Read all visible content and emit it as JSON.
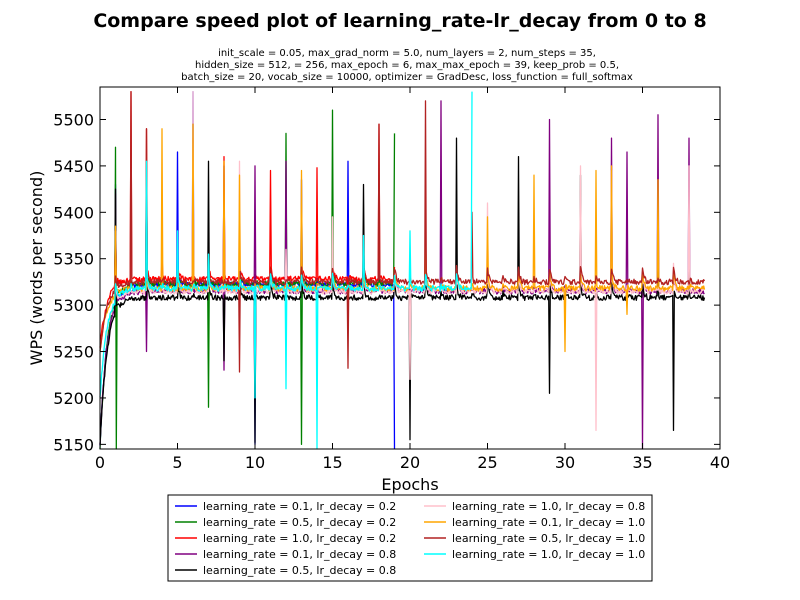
{
  "chart_data": {
    "type": "line",
    "title": "Compare speed plot of learning_rate-lr_decay from 0 to 8",
    "subtitle_lines": [
      "init_scale = 0.05, max_grad_norm = 5.0, num_layers = 2, num_steps = 35,",
      "hidden_size = 512,    = 256, max_epoch = 6, max_max_epoch = 39, keep_prob = 0.5,",
      "batch_size = 20, vocab_size = 10000, optimizer = GradDesc, loss_function = full_softmax"
    ],
    "xlabel": "Epochs",
    "ylabel": "WPS (words per second)",
    "xlim": [
      0,
      40
    ],
    "ylim": [
      5145,
      5535
    ],
    "x_ticks": [
      0,
      5,
      10,
      15,
      20,
      25,
      30,
      35,
      40
    ],
    "y_ticks": [
      5150,
      5200,
      5250,
      5300,
      5350,
      5400,
      5450,
      5500
    ],
    "grid": false,
    "legend_position": "below plot",
    "legend_columns": 2,
    "series": [
      {
        "name": "learning_rate = 0.1, lr_decay = 0.2",
        "color": "#0000ff",
        "epochs": 19,
        "start": 5150,
        "baseline": 5322,
        "spikes": [
          [
            1,
            5430
          ],
          [
            3,
            5450
          ],
          [
            5,
            5465
          ],
          [
            6,
            5530
          ],
          [
            8,
            5450
          ],
          [
            10,
            5150
          ],
          [
            13,
            5435
          ],
          [
            16,
            5455
          ],
          [
            18,
            5375
          ],
          [
            19,
            5145
          ]
        ]
      },
      {
        "name": "learning_rate = 0.5, lr_decay = 0.2",
        "color": "#008000",
        "epochs": 19,
        "start": 5145,
        "baseline": 5323,
        "spikes": [
          [
            1,
            5470
          ],
          [
            1.05,
            5145
          ],
          [
            3,
            5440
          ],
          [
            5,
            5330
          ],
          [
            7,
            5190
          ],
          [
            9,
            5350
          ],
          [
            12,
            5485
          ],
          [
            13,
            5150
          ],
          [
            15,
            5510
          ],
          [
            19,
            5485
          ]
        ]
      },
      {
        "name": "learning_rate = 1.0, lr_decay = 0.2",
        "color": "#ff0000",
        "epochs": 19,
        "start": 5255,
        "baseline": 5328,
        "spikes": [
          [
            1,
            5385
          ],
          [
            2,
            5530
          ],
          [
            3,
            5490
          ],
          [
            4,
            5355
          ],
          [
            6,
            5340
          ],
          [
            8,
            5460
          ],
          [
            11,
            5445
          ],
          [
            14,
            5448
          ],
          [
            16,
            5300
          ],
          [
            18,
            5495
          ]
        ]
      },
      {
        "name": "learning_rate = 0.1, lr_decay = 0.8",
        "color": "#800080",
        "epochs": 39,
        "start": 5150,
        "baseline": 5315,
        "spikes": [
          [
            1,
            5420
          ],
          [
            3,
            5250
          ],
          [
            6,
            5480
          ],
          [
            8,
            5230
          ],
          [
            10,
            5450
          ],
          [
            12,
            5455
          ],
          [
            22,
            5520
          ],
          [
            29,
            5500
          ],
          [
            33,
            5480
          ],
          [
            34,
            5465
          ],
          [
            35,
            5145
          ],
          [
            36,
            5505
          ],
          [
            38,
            5480
          ]
        ]
      },
      {
        "name": "learning_rate = 0.5, lr_decay = 0.8",
        "color": "#000000",
        "epochs": 39,
        "start": 5150,
        "baseline": 5308,
        "spikes": [
          [
            1,
            5425
          ],
          [
            7,
            5455
          ],
          [
            8,
            5240
          ],
          [
            10,
            5152
          ],
          [
            15,
            5335
          ],
          [
            17,
            5430
          ],
          [
            20,
            5155
          ],
          [
            23,
            5480
          ],
          [
            27,
            5460
          ],
          [
            29,
            5205
          ],
          [
            31,
            5440
          ],
          [
            36,
            5340
          ],
          [
            37,
            5165
          ],
          [
            38,
            5345
          ]
        ]
      },
      {
        "name": "learning_rate = 1.0, lr_decay = 0.8",
        "color": "#ffc0cb",
        "epochs": 39,
        "start": 5200,
        "baseline": 5315,
        "spikes": [
          [
            1,
            5380
          ],
          [
            6,
            5530
          ],
          [
            9,
            5455
          ],
          [
            12,
            5360
          ],
          [
            15,
            5395
          ],
          [
            20,
            5220
          ],
          [
            25,
            5410
          ],
          [
            31,
            5450
          ],
          [
            32,
            5165
          ],
          [
            33,
            5445
          ],
          [
            37,
            5345
          ],
          [
            38,
            5450
          ]
        ]
      },
      {
        "name": "learning_rate = 0.1, lr_decay = 1.0",
        "color": "#ffa500",
        "epochs": 39,
        "start": 5250,
        "baseline": 5318,
        "spikes": [
          [
            1,
            5385
          ],
          [
            4,
            5490
          ],
          [
            6,
            5495
          ],
          [
            8,
            5455
          ],
          [
            9,
            5440
          ],
          [
            13,
            5445
          ],
          [
            21,
            5385
          ],
          [
            25,
            5395
          ],
          [
            28,
            5440
          ],
          [
            30,
            5250
          ],
          [
            32,
            5445
          ],
          [
            33,
            5450
          ],
          [
            34,
            5290
          ],
          [
            36,
            5435
          ]
        ]
      },
      {
        "name": "learning_rate = 0.5, lr_decay = 1.0",
        "color": "#b22222",
        "epochs": 39,
        "start": 5250,
        "baseline": 5325,
        "spikes": [
          [
            2,
            5530
          ],
          [
            3,
            5490
          ],
          [
            9,
            5228
          ],
          [
            16,
            5232
          ],
          [
            18,
            5495
          ],
          [
            21,
            5520
          ],
          [
            24,
            5400
          ]
        ]
      },
      {
        "name": "learning_rate = 1.0, lr_decay = 1.0",
        "color": "#00ffff",
        "epochs": 24,
        "start": 5200,
        "baseline": 5318,
        "spikes": [
          [
            3,
            5455
          ],
          [
            5,
            5380
          ],
          [
            7,
            5355
          ],
          [
            10,
            5200
          ],
          [
            12,
            5210
          ],
          [
            14,
            5145
          ],
          [
            17,
            5375
          ],
          [
            20,
            5380
          ],
          [
            24,
            5530
          ]
        ]
      }
    ]
  }
}
